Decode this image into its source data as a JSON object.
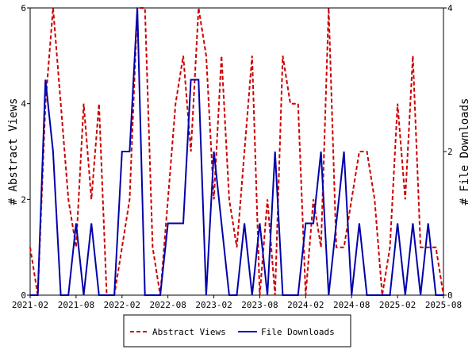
{
  "chart_data": {
    "type": "line",
    "title": "",
    "xlabel": "",
    "ylabel": "# Abstract Views",
    "y2label": "# File Downloads",
    "x_ticks": [
      "2021-02",
      "2021-08",
      "2022-02",
      "2022-08",
      "2023-02",
      "2023-08",
      "2024-02",
      "2024-08",
      "2025-02",
      "2025-08"
    ],
    "ylim": [
      0,
      6
    ],
    "y_ticks": [
      0,
      2,
      4,
      6
    ],
    "y2lim": [
      0,
      4
    ],
    "y2_ticks": [
      0,
      2,
      4
    ],
    "grid": false,
    "legend": "bottom-center",
    "colors": {
      "abstract_views": "#cc0000",
      "file_downloads": "#0000aa"
    },
    "series": [
      {
        "name": "Abstract Views",
        "axis": "left",
        "style": "dashed",
        "color": "#cc0000",
        "x": [
          "2021-02",
          "2021-03",
          "2021-04",
          "2021-05",
          "2021-06",
          "2021-07",
          "2021-08",
          "2021-09",
          "2021-10",
          "2021-11",
          "2021-12",
          "2022-01",
          "2022-02",
          "2022-03",
          "2022-04",
          "2022-05",
          "2022-06",
          "2022-07",
          "2022-08",
          "2022-09",
          "2022-10",
          "2022-11",
          "2022-12",
          "2023-01",
          "2023-02",
          "2023-03",
          "2023-04",
          "2023-05",
          "2023-06",
          "2023-07",
          "2023-08",
          "2023-09",
          "2023-10",
          "2023-11",
          "2023-12",
          "2024-01",
          "2024-02",
          "2024-03",
          "2024-04",
          "2024-05",
          "2024-06",
          "2024-07",
          "2024-08",
          "2024-09",
          "2024-10",
          "2024-11",
          "2024-12",
          "2025-01",
          "2025-02",
          "2025-03",
          "2025-04",
          "2025-05",
          "2025-06",
          "2025-07",
          "2025-08"
        ],
        "values": [
          1,
          0,
          4,
          6,
          4,
          2,
          1,
          4,
          2,
          4,
          0,
          0,
          1,
          2,
          6,
          6,
          1,
          0,
          2,
          4,
          5,
          3,
          6,
          5,
          2,
          5,
          2,
          1,
          3,
          5,
          0,
          2,
          0,
          5,
          4,
          4,
          0,
          2,
          1,
          6,
          1,
          1,
          2,
          3,
          3,
          2,
          0,
          1,
          4,
          2,
          5,
          1,
          1,
          1,
          0
        ]
      },
      {
        "name": "File Downloads",
        "axis": "right",
        "style": "solid",
        "color": "#0000aa",
        "x": [
          "2021-02",
          "2021-03",
          "2021-04",
          "2021-05",
          "2021-06",
          "2021-07",
          "2021-08",
          "2021-09",
          "2021-10",
          "2021-11",
          "2021-12",
          "2022-01",
          "2022-02",
          "2022-03",
          "2022-04",
          "2022-05",
          "2022-06",
          "2022-07",
          "2022-08",
          "2022-09",
          "2022-10",
          "2022-11",
          "2022-12",
          "2023-01",
          "2023-02",
          "2023-03",
          "2023-04",
          "2023-05",
          "2023-06",
          "2023-07",
          "2023-08",
          "2023-09",
          "2023-10",
          "2023-11",
          "2023-12",
          "2024-01",
          "2024-02",
          "2024-03",
          "2024-04",
          "2024-05",
          "2024-06",
          "2024-07",
          "2024-08",
          "2024-09",
          "2024-10",
          "2024-11",
          "2024-12",
          "2025-01",
          "2025-02",
          "2025-03",
          "2025-04",
          "2025-05",
          "2025-06",
          "2025-07",
          "2025-08"
        ],
        "values": [
          0,
          0,
          3,
          2,
          0,
          0,
          1,
          0,
          1,
          0,
          0,
          0,
          2,
          2,
          4,
          0,
          0,
          0,
          1,
          1,
          1,
          3,
          3,
          0,
          2,
          1,
          0,
          0,
          1,
          0,
          1,
          0,
          2,
          0,
          0,
          0,
          1,
          1,
          2,
          0,
          1,
          2,
          0,
          1,
          0,
          0,
          0,
          0,
          1,
          0,
          1,
          0,
          1,
          0,
          0
        ]
      }
    ]
  }
}
